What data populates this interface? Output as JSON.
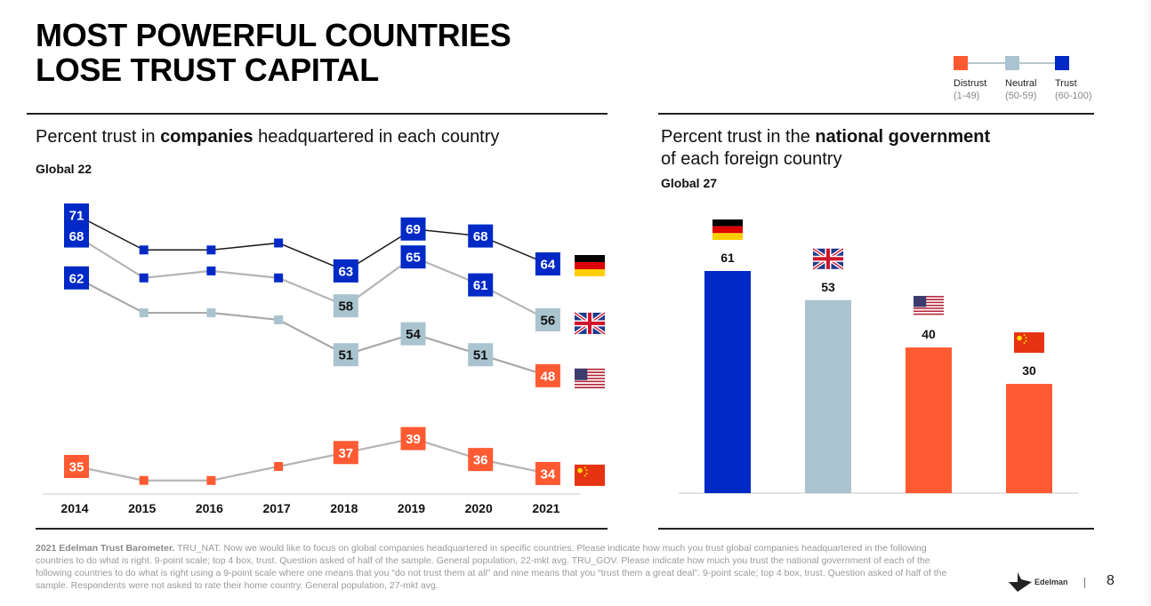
{
  "slide": {
    "title_line1": "MOST POWERFUL COUNTRIES",
    "title_line2": "LOSE TRUST CAPITAL",
    "page_number": "8",
    "logo_text": "Edelman"
  },
  "legend": {
    "items": [
      {
        "label": "Distrust",
        "range": "(1-49)",
        "color": "#ff5a32"
      },
      {
        "label": "Neutral",
        "range": "(50-59)",
        "color": "#a9c4cf"
      },
      {
        "label": "Trust",
        "range": "(60-100)",
        "color": "#0029c6"
      }
    ]
  },
  "left_panel": {
    "subtitle_pre": "Percent trust in ",
    "subtitle_bold": "companies",
    "subtitle_post": " headquartered in each country",
    "global_label": "Global 22"
  },
  "right_panel": {
    "subtitle_pre": "Percent trust in the ",
    "subtitle_bold": "national government",
    "subtitle_line2": "of each foreign country",
    "global_label": "Global 27"
  },
  "footnote": {
    "bold": "2021 Edelman Trust Barometer.",
    "text": " TRU_NAT. Now we would like to focus on global companies headquartered in specific countries. Please indicate how much you trust global companies headquartered in the following countries to do what is right. 9-point scale; top 4 box, trust. Question asked of half of the sample. General population, 22-mkt avg. TRU_GOV. Please indicate how much you trust the national government of each of the following countries to do what is right using a 9-point scale where one means that you “do not trust them at all” and nine means that you “trust them a great deal”. 9-point scale; top 4 box, trust. Question asked of half of the sample. Respondents were not asked to rate their home country. General population, 27-mkt avg."
  },
  "colors": {
    "trust": "#0029c6",
    "neutral": "#a9c4cf",
    "distrust": "#ff5a32"
  },
  "chart_data": [
    {
      "type": "line",
      "title": "Percent trust in companies headquartered in each country",
      "subtitle": "Global 22",
      "x": [
        "2014",
        "2015",
        "2016",
        "2017",
        "2018",
        "2019",
        "2020",
        "2021"
      ],
      "xlabel": "",
      "ylabel": "",
      "ylim": [
        30,
        75
      ],
      "grid": false,
      "legend": "right (flags)",
      "series": [
        {
          "name": "Germany",
          "flag": "de",
          "values": [
            71,
            66,
            66,
            67,
            63,
            69,
            68,
            64
          ],
          "labeled": [
            true,
            false,
            false,
            false,
            true,
            true,
            true,
            true
          ]
        },
        {
          "name": "United Kingdom",
          "flag": "uk",
          "values": [
            68,
            62,
            63,
            62,
            58,
            65,
            61,
            56
          ],
          "labeled": [
            true,
            false,
            false,
            false,
            true,
            true,
            true,
            true
          ]
        },
        {
          "name": "United States",
          "flag": "us",
          "values": [
            62,
            57,
            57,
            56,
            51,
            54,
            51,
            48
          ],
          "labeled": [
            true,
            false,
            false,
            false,
            true,
            true,
            true,
            true
          ]
        },
        {
          "name": "China",
          "flag": "cn",
          "values": [
            35,
            33,
            33,
            35,
            37,
            39,
            36,
            34
          ],
          "labeled": [
            true,
            false,
            false,
            false,
            true,
            true,
            true,
            true
          ]
        }
      ],
      "color_scale": {
        "distrust_max": 49,
        "neutral_max": 59
      }
    },
    {
      "type": "bar",
      "title": "Percent trust in the national government of each foreign country",
      "subtitle": "Global 27",
      "categories": [
        "Germany",
        "United Kingdom",
        "United States",
        "China"
      ],
      "flags": [
        "de",
        "uk",
        "us",
        "cn"
      ],
      "values": [
        61,
        53,
        40,
        30
      ],
      "xlabel": "",
      "ylabel": "",
      "ylim": [
        0,
        70
      ],
      "grid": false
    }
  ]
}
